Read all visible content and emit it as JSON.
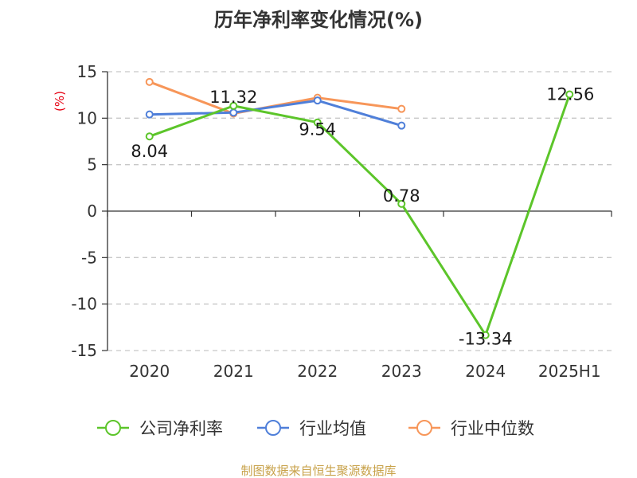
{
  "chart_data": {
    "type": "line",
    "title": "历年净利率变化情况(%)",
    "xlabel": "",
    "ylabel": "(%)",
    "categories": [
      "2020",
      "2021",
      "2022",
      "2023",
      "2024",
      "2025H1"
    ],
    "ylim": [
      -15,
      15
    ],
    "yticks": [
      15,
      10,
      5,
      0,
      -5,
      -10,
      -15
    ],
    "ytick_labels": [
      "15",
      "10",
      "5",
      "0",
      "-5",
      "-10",
      "-15"
    ],
    "grid": true,
    "legend_position": "bottom",
    "series": [
      {
        "name": "公司净利率",
        "color": "#5cc52a",
        "values": [
          8.04,
          11.32,
          9.54,
          0.78,
          -13.34,
          12.56
        ],
        "labels": [
          "8.04",
          "11.32",
          "9.54",
          "0.78",
          "-13.34",
          "12.56"
        ]
      },
      {
        "name": "行业均值",
        "color": "#4f7fd9",
        "values": [
          10.4,
          10.6,
          11.9,
          9.2,
          null,
          null
        ]
      },
      {
        "name": "行业中位数",
        "color": "#f79659",
        "values": [
          13.9,
          10.5,
          12.2,
          11.0,
          null,
          null
        ]
      }
    ]
  },
  "source_note": "制图数据来自恒生聚源数据库"
}
